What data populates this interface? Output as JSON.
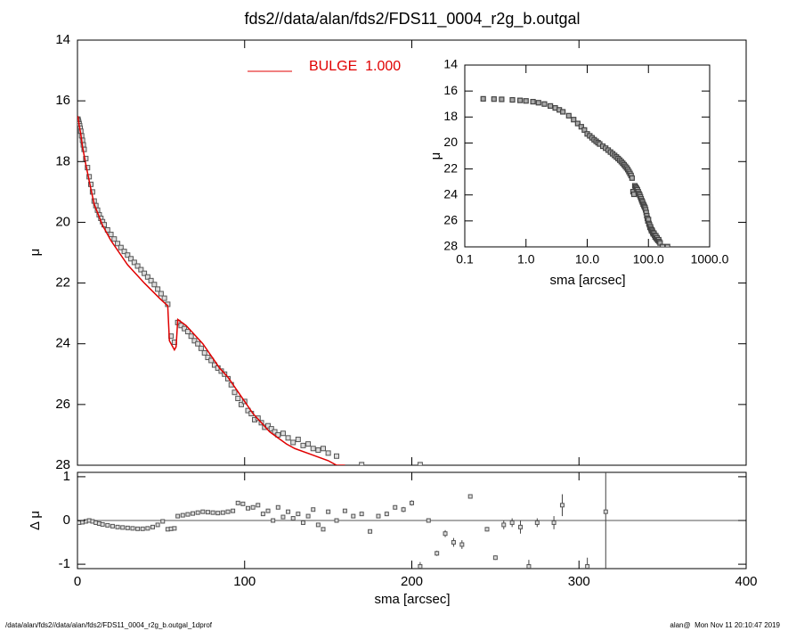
{
  "chart_data": [
    {
      "type": "scatter",
      "title": "fds2//data/alan/fds2/FDS11_0004_r2g_b.outgal",
      "ylabel": "μ",
      "xlim": [
        0,
        400
      ],
      "xticks": [
        0,
        100,
        200,
        300,
        400
      ],
      "ylim": [
        14,
        28
      ],
      "yreverse": true,
      "yticks": [
        14,
        16,
        18,
        20,
        22,
        24,
        26,
        28
      ],
      "color": "#555555",
      "x": [
        0.2,
        0.3,
        0.4,
        0.6,
        0.8,
        1,
        1.3,
        1.6,
        2,
        2.5,
        3,
        3.5,
        4,
        5,
        6,
        7,
        8,
        9,
        10,
        11,
        12,
        13,
        14,
        15,
        16,
        18,
        20,
        22,
        24,
        26,
        28,
        30,
        32,
        34,
        36,
        38,
        40,
        42,
        44,
        46,
        48,
        50,
        52,
        54,
        56,
        58,
        60,
        62,
        64,
        66,
        68,
        70,
        72,
        74,
        76,
        78,
        80,
        82,
        84,
        86,
        88,
        90,
        92,
        94,
        96,
        98,
        100,
        102,
        104,
        106,
        108,
        110,
        112,
        114,
        116,
        118,
        120,
        123,
        126,
        129,
        132,
        135,
        138,
        141,
        144,
        147,
        150,
        155,
        170,
        205
      ],
      "values": [
        16.6,
        16.62,
        16.64,
        16.68,
        16.72,
        16.76,
        16.82,
        16.9,
        17.0,
        17.15,
        17.3,
        17.45,
        17.6,
        17.9,
        18.2,
        18.5,
        18.75,
        19.0,
        19.3,
        19.45,
        19.6,
        19.75,
        19.87,
        19.98,
        20.08,
        20.25,
        20.4,
        20.55,
        20.7,
        20.83,
        20.96,
        21.08,
        21.2,
        21.32,
        21.44,
        21.56,
        21.68,
        21.8,
        21.92,
        22.05,
        22.2,
        22.35,
        22.5,
        22.7,
        23.75,
        23.95,
        23.3,
        23.4,
        23.5,
        23.6,
        23.75,
        23.9,
        24.0,
        24.15,
        24.3,
        24.45,
        24.55,
        24.7,
        24.8,
        24.9,
        25.0,
        25.15,
        25.35,
        25.6,
        25.8,
        26.0,
        25.9,
        26.2,
        26.3,
        26.5,
        26.45,
        26.6,
        26.75,
        26.7,
        26.8,
        26.9,
        27.0,
        26.95,
        27.1,
        27.25,
        27.15,
        27.35,
        27.3,
        27.45,
        27.5,
        27.45,
        27.6,
        27.7,
        27.98,
        27.98
      ],
      "lines": [
        {
          "name": "BULGE  1.000",
          "color": "#e00000",
          "x": [
            0.2,
            1,
            2,
            3,
            5,
            8,
            10,
            15,
            20,
            30,
            40,
            50,
            54,
            55,
            58,
            59,
            60,
            65,
            70,
            75,
            80,
            85,
            90,
            95,
            100,
            105,
            110,
            115,
            120,
            125,
            130,
            140,
            150,
            155,
            160
          ],
          "values": [
            16.5,
            16.8,
            17.1,
            17.5,
            18.1,
            18.9,
            19.4,
            20.1,
            20.6,
            21.4,
            22.0,
            22.55,
            22.75,
            23.9,
            24.2,
            24.1,
            23.2,
            23.4,
            23.7,
            24.0,
            24.4,
            24.8,
            25.1,
            25.5,
            25.9,
            26.3,
            26.6,
            26.9,
            27.1,
            27.3,
            27.45,
            27.65,
            27.85,
            28.0,
            28.0
          ]
        }
      ]
    },
    {
      "type": "errorbar",
      "xlabel": "sma [arcsec]",
      "ylabel": "Δ μ",
      "xlim": [
        0,
        400
      ],
      "xticks": [
        0,
        100,
        200,
        300,
        400
      ],
      "ylim": [
        -1.1,
        1.1
      ],
      "yticks": [
        -1,
        0,
        1
      ],
      "color": "#555555",
      "x": [
        1,
        3,
        5,
        7,
        9,
        11,
        13,
        15,
        18,
        21,
        24,
        27,
        30,
        33,
        36,
        39,
        42,
        45,
        48,
        51,
        54,
        56,
        58,
        60,
        63,
        66,
        69,
        72,
        75,
        78,
        81,
        84,
        87,
        90,
        93,
        96,
        99,
        102,
        105,
        108,
        111,
        114,
        117,
        120,
        123,
        126,
        129,
        132,
        135,
        138,
        141,
        144,
        147,
        150,
        155,
        160,
        165,
        170,
        175,
        180,
        185,
        190,
        195,
        200,
        205,
        210,
        215,
        220,
        225,
        230,
        235,
        245,
        250,
        255,
        260,
        265,
        270,
        275,
        285,
        290,
        305,
        316
      ],
      "values": [
        -0.05,
        -0.04,
        -0.02,
        0.0,
        -0.02,
        -0.05,
        -0.07,
        -0.09,
        -0.11,
        -0.13,
        -0.15,
        -0.16,
        -0.17,
        -0.18,
        -0.19,
        -0.19,
        -0.18,
        -0.15,
        -0.1,
        -0.02,
        -0.2,
        -0.19,
        -0.18,
        0.1,
        0.12,
        0.14,
        0.16,
        0.18,
        0.2,
        0.19,
        0.18,
        0.17,
        0.18,
        0.2,
        0.22,
        0.4,
        0.38,
        0.28,
        0.3,
        0.35,
        0.15,
        0.22,
        0.0,
        0.3,
        0.08,
        0.2,
        0.05,
        0.15,
        -0.05,
        0.1,
        0.25,
        -0.1,
        -0.2,
        0.2,
        0.0,
        0.22,
        0.1,
        0.15,
        -0.25,
        0.1,
        0.15,
        0.3,
        0.25,
        0.4,
        -1.05,
        0.0,
        -0.75,
        -0.3,
        -0.5,
        -0.55,
        0.55,
        -0.2,
        -0.85,
        -0.1,
        -0.05,
        -0.15,
        -1.05,
        -0.05,
        -0.05,
        0.35,
        -1.05,
        0.2
      ],
      "errors": [
        0.02,
        0.02,
        0.02,
        0.02,
        0.02,
        0.02,
        0.02,
        0.02,
        0.02,
        0.02,
        0.02,
        0.02,
        0.02,
        0.02,
        0.02,
        0.02,
        0.02,
        0.02,
        0.02,
        0.02,
        0.02,
        0.02,
        0.02,
        0.02,
        0.02,
        0.02,
        0.02,
        0.02,
        0.02,
        0.02,
        0.02,
        0.02,
        0.02,
        0.02,
        0.02,
        0.02,
        0.02,
        0.02,
        0.02,
        0.02,
        0.03,
        0.03,
        0.03,
        0.03,
        0.03,
        0.03,
        0.03,
        0.03,
        0.03,
        0.03,
        0.03,
        0.03,
        0.03,
        0.03,
        0.03,
        0.03,
        0.03,
        0.03,
        0.03,
        0.03,
        0.05,
        0.05,
        0.06,
        0.06,
        0.1,
        0.05,
        0.06,
        0.08,
        0.1,
        0.1,
        0.05,
        0.05,
        0.05,
        0.1,
        0.1,
        0.15,
        0.15,
        0.1,
        0.15,
        0.25,
        0.2,
        3
      ]
    },
    {
      "type": "scatter",
      "xlabel": "sma [arcsec]",
      "ylabel": "μ",
      "xlog": true,
      "xlim": [
        0.1,
        1000
      ],
      "xticks": [
        0.1,
        {
          "value": 1,
          "label": "1.0"
        },
        {
          "value": 10,
          "label": "10.0"
        },
        {
          "value": 100,
          "label": "100.0"
        },
        {
          "value": 1000,
          "label": "1000.0"
        }
      ],
      "ylim": [
        14,
        28
      ],
      "yreverse": true,
      "yticks": [
        14,
        16,
        18,
        20,
        22,
        24,
        26,
        28
      ],
      "color": "#444444"
    }
  ],
  "footer_left": "/data/alan/fds2//data/alan/fds2/FDS11_0004_r2g_b.outgal_1dprof",
  "footer_right": "alan@  Mon Nov 11 20:10:47 2019"
}
